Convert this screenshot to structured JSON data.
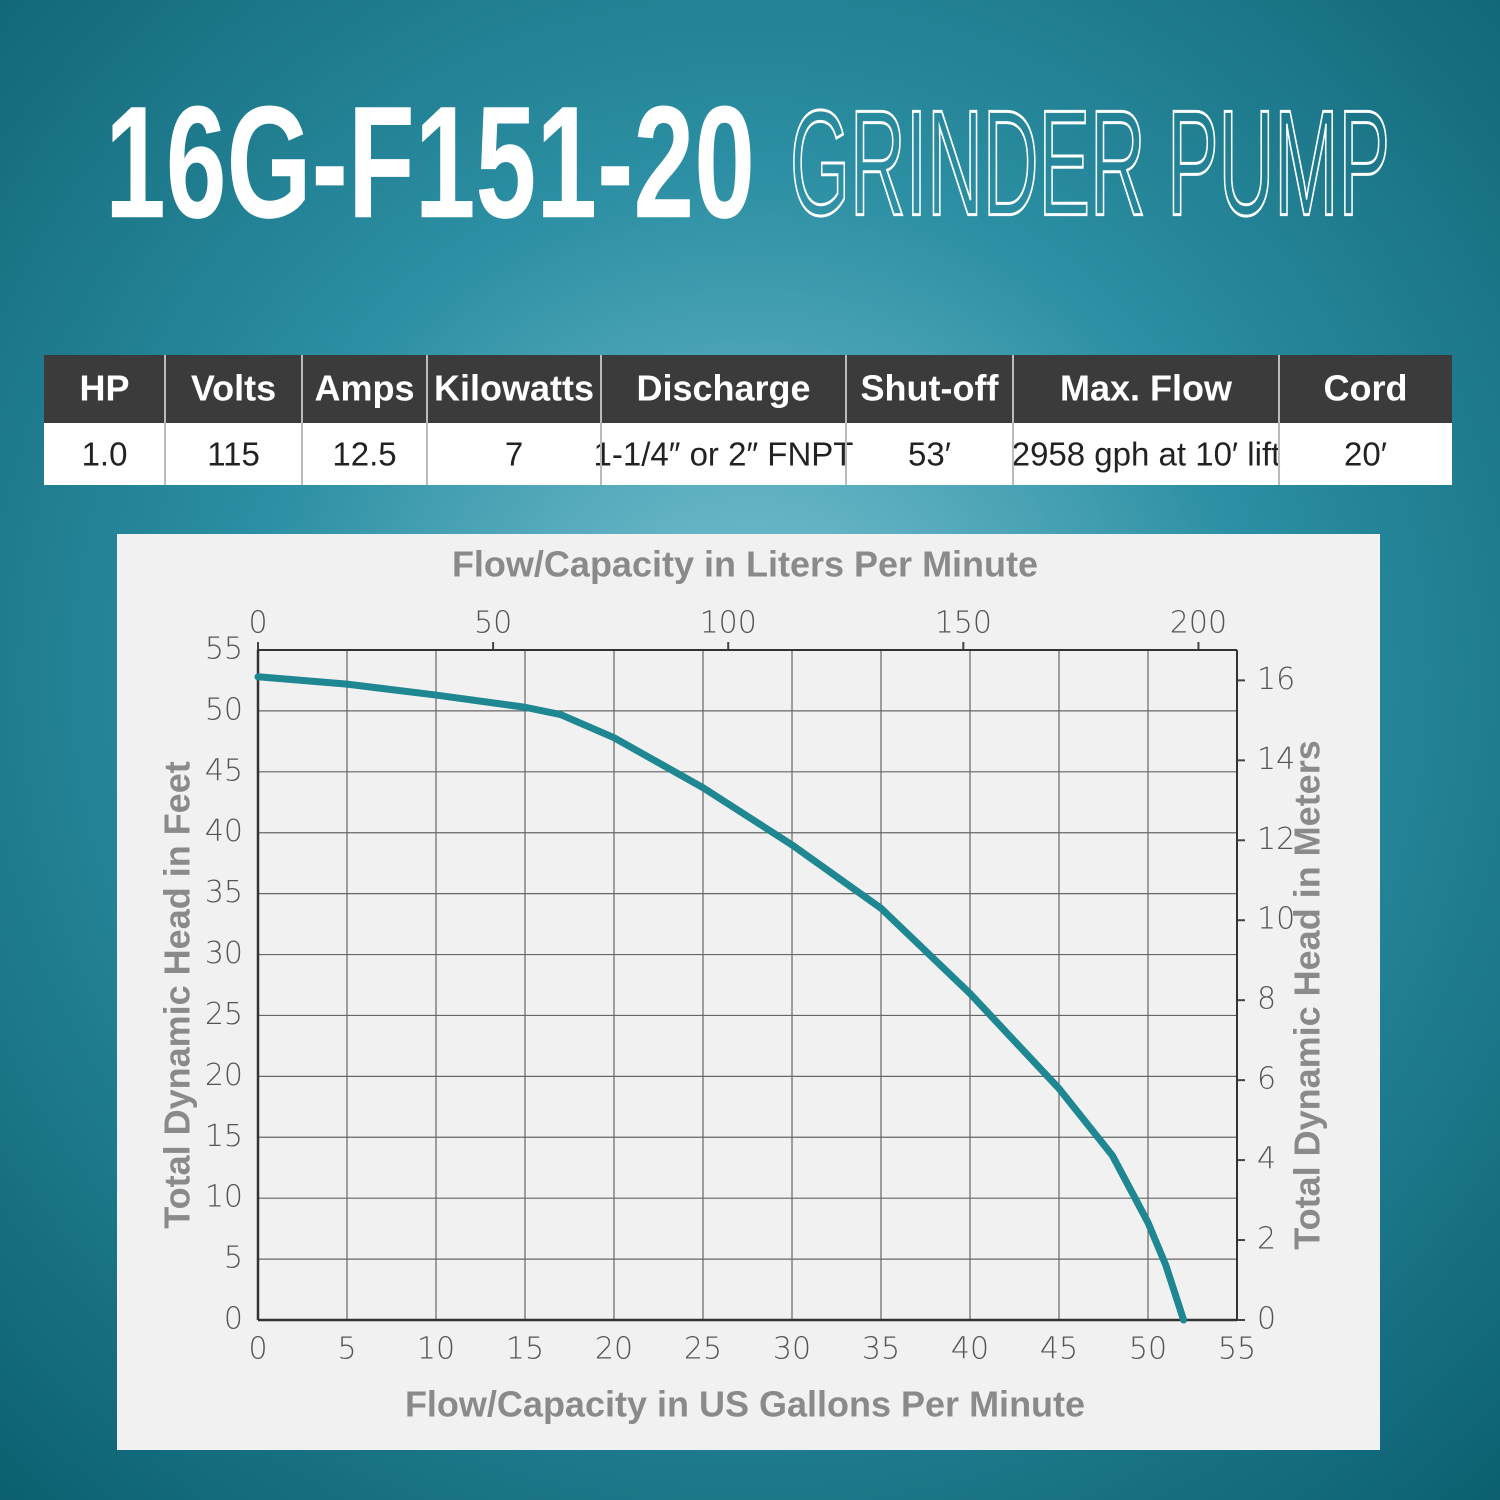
{
  "header": {
    "model": "16G-F151-20",
    "product": "GRINDER PUMP"
  },
  "table": {
    "columns": [
      "HP",
      "Volts",
      "Amps",
      "Kilowatts",
      "Discharge",
      "Shut-off",
      "Max. Flow",
      "Cord"
    ],
    "rows": [
      [
        "1.0",
        "115",
        "12.5",
        "7",
        "1-1/4″ or 2″ FNPT",
        "53′",
        "2958 gph at 10′ lift",
        "20′"
      ]
    ]
  },
  "chart_data": {
    "type": "line",
    "x_label": "Flow/Capacity in US Gallons Per Minute",
    "x2_label": "Flow/Capacity in Liters Per Minute",
    "y_label": "Total Dynamic Head in Feet",
    "y2_label": "Total Dynamic Head in Meters",
    "x": [
      0,
      5,
      10,
      15,
      17,
      20,
      25,
      30,
      35,
      40,
      45,
      48,
      50,
      51,
      52
    ],
    "series": [
      {
        "color": "#1e8792",
        "values": [
          52.8,
          52.2,
          51.3,
          50.3,
          49.7,
          47.8,
          43.7,
          39,
          33.8,
          26.8,
          19,
          13.5,
          8,
          4.5,
          0
        ]
      }
    ],
    "xlim": [
      0,
      55
    ],
    "xticks": [
      0,
      5,
      10,
      15,
      20,
      25,
      30,
      35,
      40,
      45,
      50,
      55
    ],
    "x2lim": [
      0,
      208.2
    ],
    "x2ticks": [
      0,
      50,
      100,
      150,
      200
    ],
    "ylim": [
      0,
      55
    ],
    "yticks": [
      0,
      5,
      10,
      15,
      20,
      25,
      30,
      35,
      40,
      45,
      50,
      55
    ],
    "y2lim": [
      0,
      16.76
    ],
    "y2ticks": [
      0,
      2,
      4,
      6,
      8,
      10,
      12,
      14,
      16
    ],
    "grid": true
  }
}
